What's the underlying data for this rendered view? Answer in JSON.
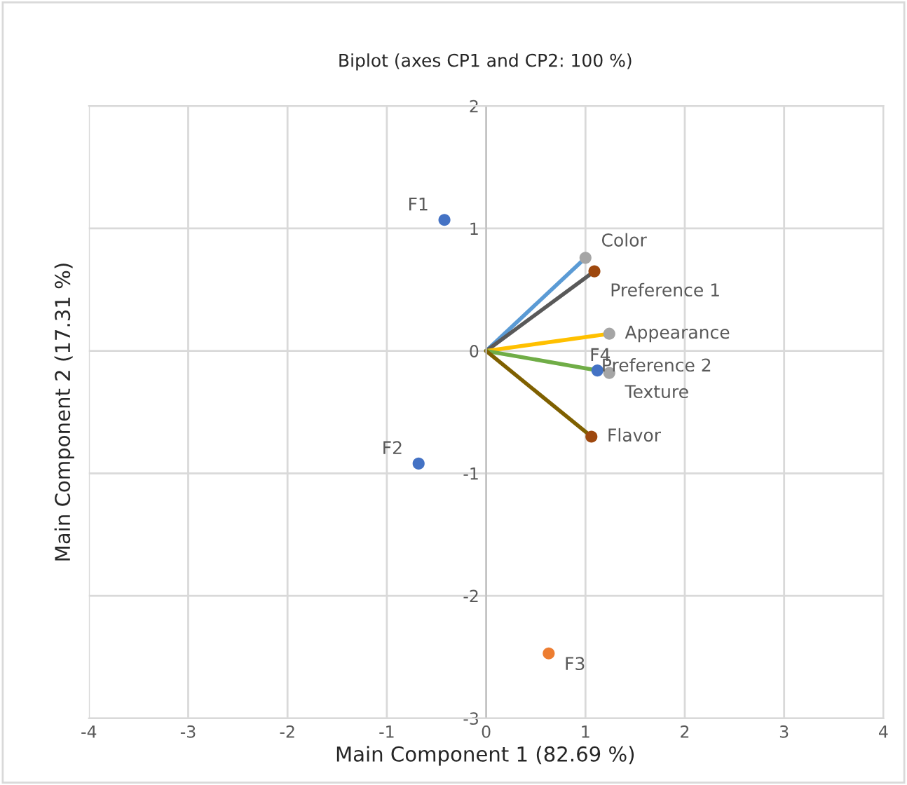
{
  "chart_data": {
    "type": "scatter",
    "title": "Biplot (axes CP1 and CP2: 100 %)",
    "xlabel": "Main Component 1 (82.69 %)",
    "ylabel": "Main Component 2 (17.31 %)",
    "xlim": [
      -4,
      4
    ],
    "ylim": [
      -3,
      2
    ],
    "xticks": [
      -4,
      -3,
      -2,
      -1,
      0,
      1,
      2,
      3,
      4
    ],
    "yticks": [
      -3,
      -2,
      -1,
      0,
      1,
      2
    ],
    "grid": true,
    "marker": "circle",
    "series": [
      {
        "type": "line",
        "marker": "none",
        "x": [
          0,
          1.0
        ],
        "values": [
          0,
          0.76
        ],
        "color": "#5b9bd5"
      },
      {
        "type": "line",
        "marker": "none",
        "x": [
          0,
          1.09
        ],
        "values": [
          0,
          0.65
        ],
        "color": "#595959"
      },
      {
        "type": "line",
        "marker": "none",
        "x": [
          0,
          1.24
        ],
        "values": [
          0,
          0.14
        ],
        "color": "#ffc000"
      },
      {
        "type": "line",
        "marker": "none",
        "x": [
          0,
          1.12
        ],
        "values": [
          0,
          -0.16
        ],
        "color": "#70ad47"
      },
      {
        "type": "line",
        "marker": "none",
        "x": [
          0,
          1.06
        ],
        "values": [
          0,
          -0.7
        ],
        "color": "#7f6000"
      },
      {
        "type": "scatter",
        "x": [
          1.0,
          1.09,
          1.24,
          1.24,
          1.06
        ],
        "values": [
          0.76,
          0.65,
          0.14,
          -0.18,
          -0.7
        ],
        "colors": [
          "#a5a5a5",
          "#9e480e",
          "#a5a5a5",
          "#a5a5a5",
          "#9e480e"
        ]
      },
      {
        "type": "scatter",
        "x": [
          -0.42,
          -0.68,
          0.63,
          1.12
        ],
        "values": [
          1.07,
          -0.92,
          -2.47,
          -0.16
        ],
        "colors": [
          "#4472c4",
          "#4472c4",
          "#ed7d31",
          "#4472c4"
        ]
      }
    ],
    "annotations": [
      {
        "text": "Color",
        "x": 1.0,
        "y": 0.76
      },
      {
        "text": "Preference 1",
        "x": 1.09,
        "y": 0.65
      },
      {
        "text": "Appearance",
        "x": 1.24,
        "y": 0.14
      },
      {
        "text": "Texture",
        "x": 1.24,
        "y": -0.18
      },
      {
        "text": "Flavor",
        "x": 1.06,
        "y": -0.7
      },
      {
        "text": "F1",
        "x": -0.42,
        "y": 1.07
      },
      {
        "text": "F2",
        "x": -0.68,
        "y": -0.92
      },
      {
        "text": "F3",
        "x": 0.63,
        "y": -2.47
      },
      {
        "text": "F4",
        "x": 1.12,
        "y": -0.16
      },
      {
        "text": "Preference 2",
        "x": 1.12,
        "y": -0.16
      }
    ]
  }
}
